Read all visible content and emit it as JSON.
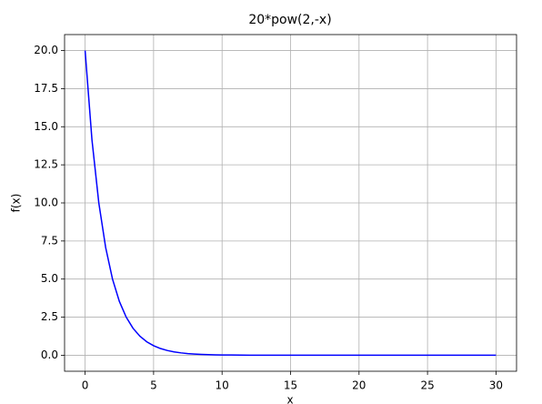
{
  "chart_data": {
    "type": "line",
    "title": "20*pow(2,-x)",
    "x_label": "x",
    "y_label": "f(x)",
    "x": [
      0,
      0.5,
      1,
      1.5,
      2,
      2.5,
      3,
      3.5,
      4,
      4.5,
      5,
      5.5,
      6,
      6.5,
      7,
      7.5,
      8,
      8.5,
      9,
      9.5,
      10,
      12,
      15,
      20,
      25,
      30
    ],
    "series": [
      {
        "name": "20*pow(2,-x)",
        "color": "#0000ff",
        "values": [
          20,
          14.142,
          10,
          7.071,
          5,
          3.536,
          2.5,
          1.768,
          1.25,
          0.884,
          0.625,
          0.442,
          0.3125,
          0.221,
          0.156,
          0.11,
          0.078,
          0.055,
          0.039,
          0.028,
          0.02,
          0.005,
          0.001,
          0,
          0,
          0
        ]
      }
    ],
    "xlim": [
      -1.5,
      31.5
    ],
    "ylim": [
      -1.05,
      21.05
    ],
    "xticks": [
      0,
      5,
      10,
      15,
      20,
      25,
      30
    ],
    "yticks": [
      {
        "value": 0,
        "label": "0.0"
      },
      2.5,
      {
        "value": 5,
        "label": "5.0"
      },
      7.5,
      {
        "value": 10,
        "label": "10.0"
      },
      12.5,
      {
        "value": 15,
        "label": "15.0"
      },
      17.5,
      {
        "value": 20,
        "label": "20.0"
      }
    ],
    "grid": true
  }
}
